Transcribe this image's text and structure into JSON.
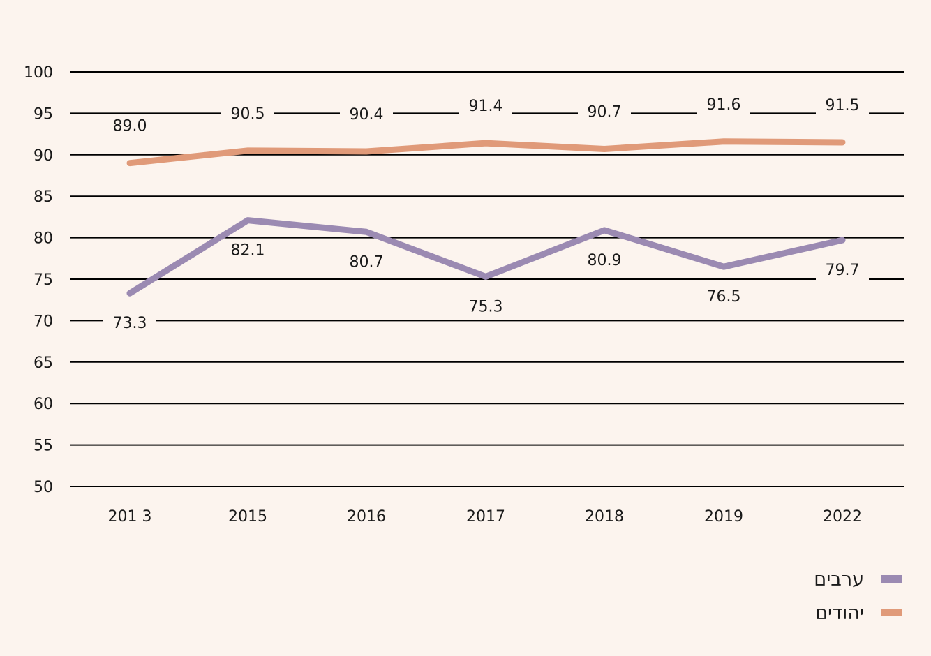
{
  "chart_data": {
    "type": "line",
    "categories": [
      "201 3",
      "2015",
      "2016",
      "2017",
      "2018",
      "2019",
      "2022"
    ],
    "ylim": [
      50,
      100
    ],
    "yticks": [
      "100",
      "95",
      "90",
      "85",
      "80",
      "75",
      "70",
      "65",
      "60",
      "55",
      "50"
    ],
    "grid": true,
    "legend_position": "bottom-right",
    "series": [
      {
        "name": "יהודים",
        "color": "#e09a79",
        "values": [
          89.0,
          90.5,
          90.4,
          91.4,
          90.7,
          91.6,
          91.5
        ],
        "labels": [
          "89.0",
          "90.5",
          "90.4",
          "91.4",
          "90.7",
          "91.6",
          "91.5"
        ]
      },
      {
        "name": "ערבים",
        "color": "#9b8ab2",
        "values": [
          73.3,
          82.1,
          80.7,
          75.3,
          80.9,
          76.5,
          79.7
        ],
        "labels": [
          "73.3",
          "82.1",
          "80.7",
          "75.3",
          "80.9",
          "76.5",
          "79.7"
        ]
      }
    ]
  }
}
